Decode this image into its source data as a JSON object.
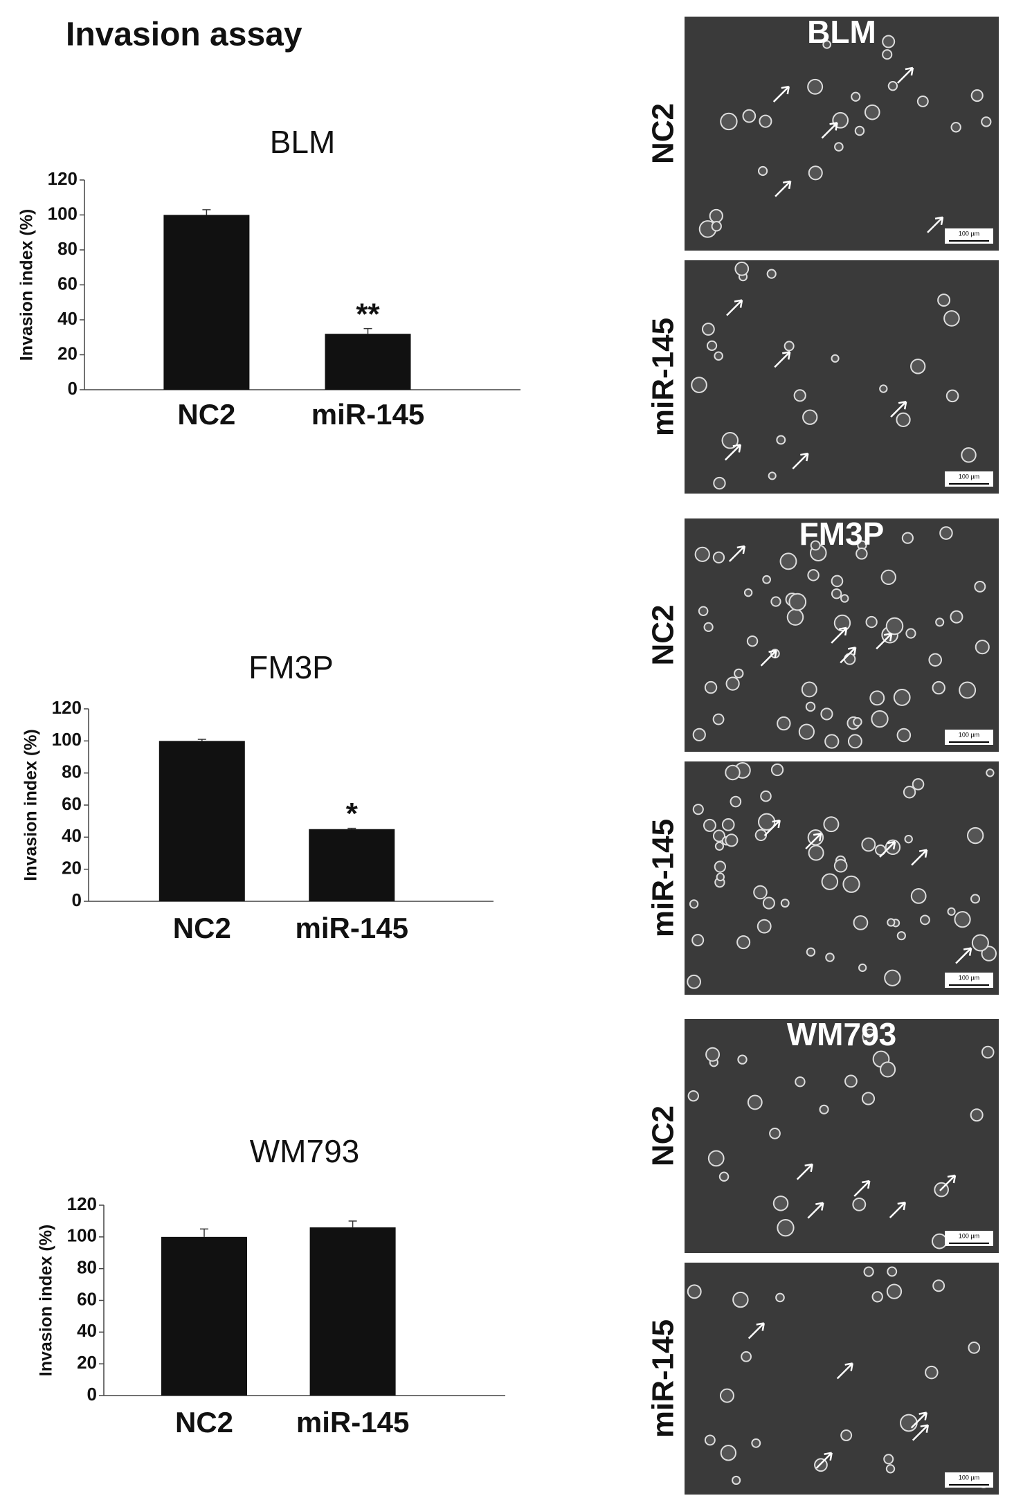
{
  "title": "Invasion assay",
  "chart_data": [
    {
      "type": "bar",
      "title": "BLM",
      "y_label": "Invasion index (%)",
      "categories": [
        "NC2",
        "miR-145"
      ],
      "values": [
        100,
        32
      ],
      "errors": [
        3,
        3
      ],
      "color": "#111111",
      "ylim": [
        0,
        120
      ],
      "yticks": [
        0,
        20,
        40,
        60,
        80,
        100,
        120
      ],
      "annotations": [
        {
          "x": "miR-145",
          "text": "**"
        }
      ]
    },
    {
      "type": "bar",
      "title": "FM3P",
      "y_label": "Invasion index (%)",
      "categories": [
        "NC2",
        "miR-145"
      ],
      "values": [
        100,
        45
      ],
      "errors": [
        1,
        0.5
      ],
      "color": "#111111",
      "ylim": [
        0,
        120
      ],
      "yticks": [
        0,
        20,
        40,
        60,
        80,
        100,
        120
      ],
      "annotations": [
        {
          "x": "miR-145",
          "text": "*"
        }
      ]
    },
    {
      "type": "bar",
      "title": "WM793",
      "y_label": "Invasion index (%)",
      "categories": [
        "NC2",
        "miR-145"
      ],
      "values": [
        100,
        106
      ],
      "errors": [
        5,
        4
      ],
      "color": "#111111",
      "ylim": [
        0,
        120
      ],
      "yticks": [
        0,
        20,
        40,
        60,
        80,
        100,
        120
      ],
      "annotations": []
    }
  ],
  "micrographs": [
    {
      "cell_line": "BLM",
      "rows": [
        {
          "label": "NC2",
          "scale_bar": "100 µm"
        },
        {
          "label": "miR-145",
          "scale_bar": "100 µm"
        }
      ]
    },
    {
      "cell_line": "FM3P",
      "rows": [
        {
          "label": "NC2",
          "scale_bar": "100 µm"
        },
        {
          "label": "miR-145",
          "scale_bar": "100 µm"
        }
      ]
    },
    {
      "cell_line": "WM793",
      "rows": [
        {
          "label": "NC2",
          "scale_bar": "100 µm"
        },
        {
          "label": "miR-145",
          "scale_bar": "100 µm"
        }
      ]
    }
  ]
}
